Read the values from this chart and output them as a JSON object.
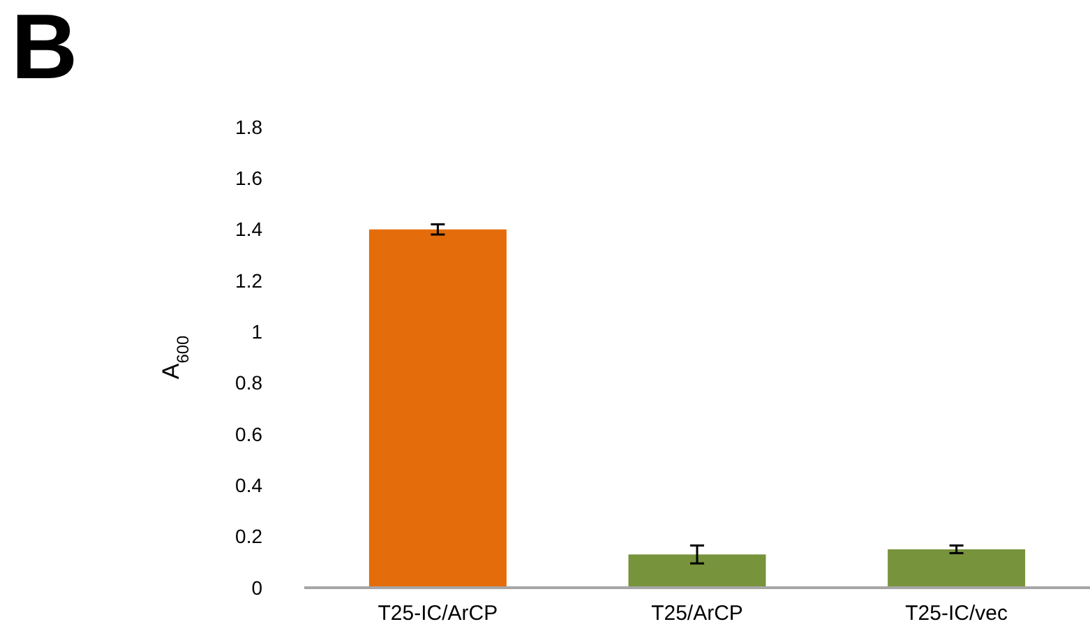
{
  "chart_data": {
    "type": "bar",
    "ylabel": "A$_{600}$",
    "annotations": [
      "B"
    ],
    "categories": [
      "T25-IC/ArCP",
      "T25/ArCP",
      "T25-IC/vec"
    ],
    "values": [
      1.4,
      0.13,
      0.15
    ],
    "colors": [
      "#e46c0a",
      "#77933c",
      "#77933c"
    ],
    "errors": [
      0.02,
      0.035,
      0.015
    ],
    "ylim": [
      0,
      1.8
    ],
    "yticks": [
      0,
      0.2,
      0.4,
      0.6,
      0.8,
      1,
      1.2,
      1.4,
      1.6,
      1.8
    ],
    "grid": false
  }
}
